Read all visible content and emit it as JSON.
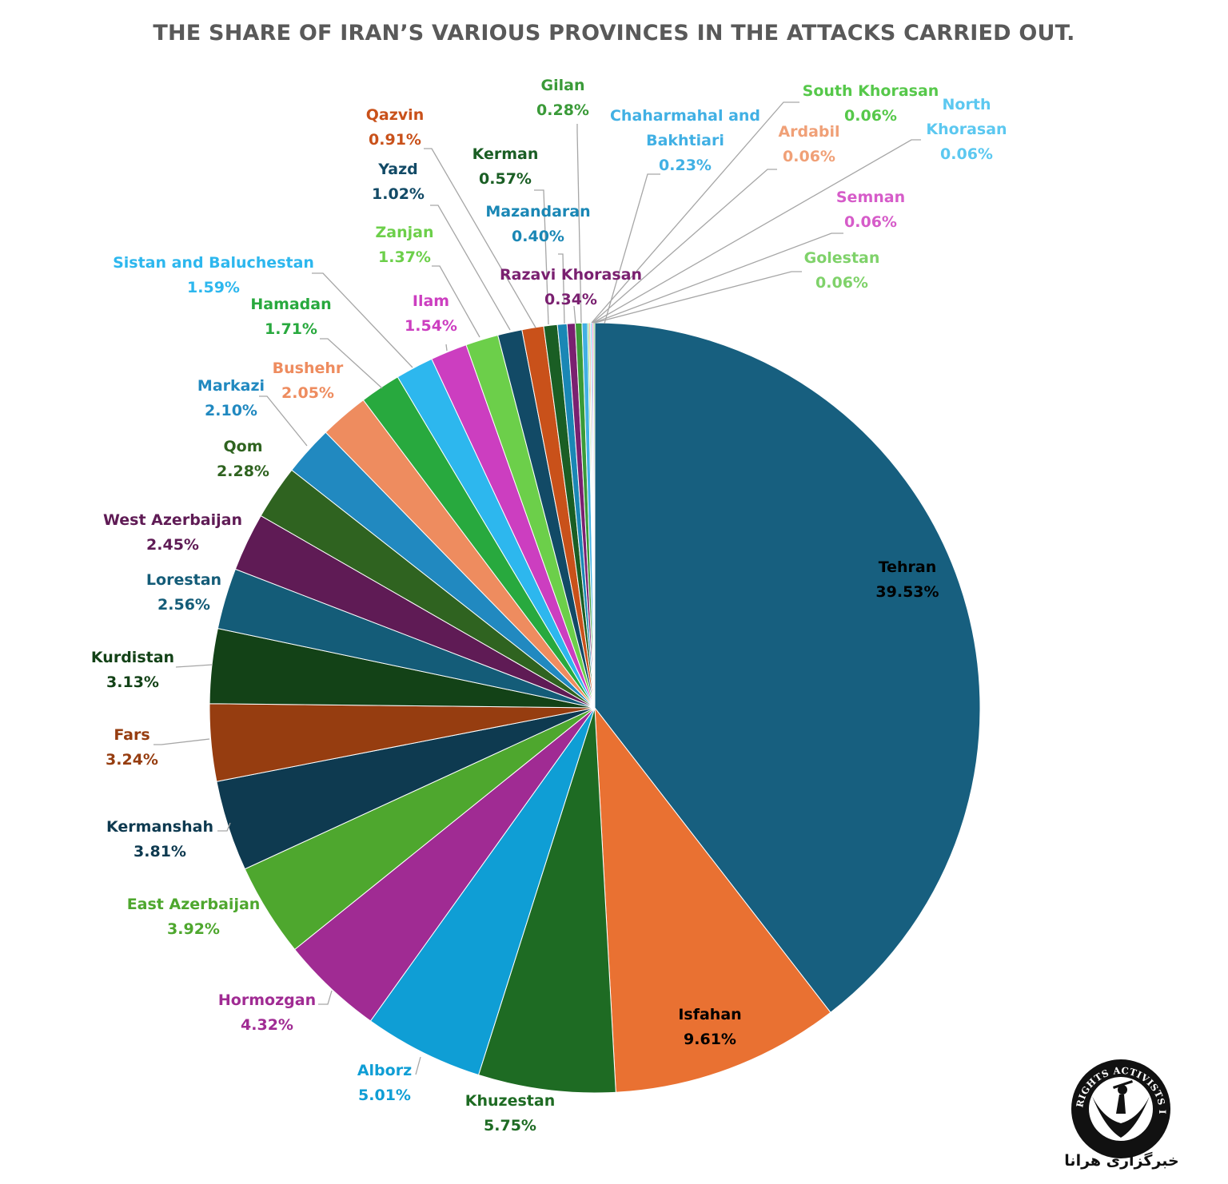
{
  "colors": {
    "Tehran": "#175f7f",
    "Isfahan": "#e97132",
    "Khuzestan": "#1e6b23",
    "Alborz": "#0f9ed5",
    "Hormozgan": "#a02b93",
    "East Azerbaijan": "#4ea72e",
    "Kermanshah": "#0e3a50",
    "Fars": "#963d10",
    "Kurdistan": "#134217",
    "Lorestan": "#145c78",
    "West Azerbaijan": "#5f1b55",
    "Qom": "#2f6320",
    "Markazi": "#2189c0",
    "Bushehr": "#ee8c5f",
    "Hamadan": "#28a93e",
    "Sistan and Baluchestan": "#2db7ee",
    "Ilam": "#cc3ec0",
    "Zanjan": "#6ccf4a",
    "Yazd": "#124a66",
    "Qazvin": "#c9511a",
    "Kerman": "#1a5e24",
    "Mazandaran": "#1a87b5",
    "Razavi Khorasan": "#7a2070",
    "Gilan": "#3a9a38",
    "Chaharmahal and Bakhtiari": "#41b0e4",
    "South Khorasan": "#56c84a",
    "Ardabil": "#f0a077",
    "North Khorasan": "#5cc8f0",
    "Semnan": "#d65cc9",
    "Golestan": "#7fd26a"
  },
  "chart_data": {
    "type": "pie",
    "title": "THE SHARE OF IRAN’S VARIOUS PROVINCES IN THE ATTACKS CARRIED OUT.",
    "categories": [
      "Tehran",
      "Isfahan",
      "Khuzestan",
      "Alborz",
      "Hormozgan",
      "East Azerbaijan",
      "Kermanshah",
      "Fars",
      "Kurdistan",
      "Lorestan",
      "West Azerbaijan",
      "Qom",
      "Markazi",
      "Bushehr",
      "Hamadan",
      "Sistan and Baluchestan",
      "Ilam",
      "Zanjan",
      "Yazd",
      "Qazvin",
      "Kerman",
      "Mazandaran",
      "Razavi Khorasan",
      "Gilan",
      "Chaharmahal and Bakhtiari",
      "South Khorasan",
      "Ardabil",
      "North Khorasan",
      "Semnan",
      "Golestan"
    ],
    "values": [
      39.53,
      9.61,
      5.75,
      5.01,
      4.32,
      3.92,
      3.81,
      3.24,
      3.13,
      2.56,
      2.45,
      2.28,
      2.1,
      2.05,
      1.71,
      1.59,
      1.54,
      1.37,
      1.02,
      0.91,
      0.57,
      0.4,
      0.34,
      0.28,
      0.23,
      0.06,
      0.06,
      0.06,
      0.06,
      0.06
    ],
    "value_labels": [
      "39.53%",
      "9.61%",
      "5.75%",
      "5.01%",
      "4.32%",
      "3.92%",
      "3.81%",
      "3.24%",
      "3.13%",
      "2.56%",
      "2.45%",
      "2.28%",
      "2.10%",
      "2.05%",
      "1.71%",
      "1.59%",
      "1.54%",
      "1.37%",
      "1.02%",
      "0.91%",
      "0.57%",
      "0.40%",
      "0.34%",
      "0.28%",
      "0.23%",
      "0.06%",
      "0.06%",
      "0.06%",
      "0.06%",
      "0.06%"
    ],
    "start_angle_deg": 0,
    "direction": "clockwise",
    "legend": "none (data labels with leader lines)"
  },
  "logo": {
    "arc_text": "HUMAN RIGHTS ACTIVISTS IN IRAN",
    "caption": "خبرگزاری هرانا"
  }
}
